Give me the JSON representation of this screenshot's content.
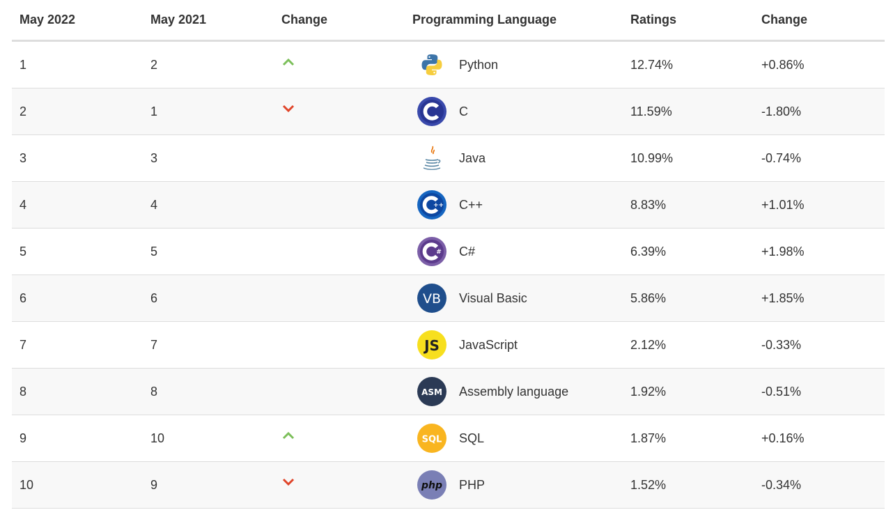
{
  "headers": {
    "col_current": "May 2022",
    "col_previous": "May 2021",
    "col_change": "Change",
    "col_language": "Programming Language",
    "col_ratings": "Ratings",
    "col_ratings_change": "Change"
  },
  "colors": {
    "up": "#7cbf5a",
    "down": "#e0452a",
    "row_alt": "#f8f8f8",
    "border": "#dddddd"
  },
  "rows": [
    {
      "current": "1",
      "previous": "2",
      "trend": "up",
      "icon": "python-logo-icon",
      "language": "Python",
      "rating": "12.74%",
      "change": "+0.86%"
    },
    {
      "current": "2",
      "previous": "1",
      "trend": "down",
      "icon": "c-logo-icon",
      "language": "C",
      "rating": "11.59%",
      "change": "-1.80%"
    },
    {
      "current": "3",
      "previous": "3",
      "trend": "none",
      "icon": "java-logo-icon",
      "language": "Java",
      "rating": "10.99%",
      "change": "-0.74%"
    },
    {
      "current": "4",
      "previous": "4",
      "trend": "none",
      "icon": "cpp-logo-icon",
      "language": "C++",
      "rating": "8.83%",
      "change": "+1.01%"
    },
    {
      "current": "5",
      "previous": "5",
      "trend": "none",
      "icon": "csharp-logo-icon",
      "language": "C#",
      "rating": "6.39%",
      "change": "+1.98%"
    },
    {
      "current": "6",
      "previous": "6",
      "trend": "none",
      "icon": "visual-basic-logo-icon",
      "language": "Visual Basic",
      "rating": "5.86%",
      "change": "+1.85%"
    },
    {
      "current": "7",
      "previous": "7",
      "trend": "none",
      "icon": "javascript-logo-icon",
      "language": "JavaScript",
      "rating": "2.12%",
      "change": "-0.33%"
    },
    {
      "current": "8",
      "previous": "8",
      "trend": "none",
      "icon": "assembly-logo-icon",
      "language": "Assembly language",
      "rating": "1.92%",
      "change": "-0.51%"
    },
    {
      "current": "9",
      "previous": "10",
      "trend": "up",
      "icon": "sql-logo-icon",
      "language": "SQL",
      "rating": "1.87%",
      "change": "+0.16%"
    },
    {
      "current": "10",
      "previous": "9",
      "trend": "down",
      "icon": "php-logo-icon",
      "language": "PHP",
      "rating": "1.52%",
      "change": "-0.34%"
    }
  ],
  "logo_text": {
    "vb": "VB",
    "js": "JS",
    "asm": "ASM",
    "sql": "SQL",
    "php": "php"
  }
}
